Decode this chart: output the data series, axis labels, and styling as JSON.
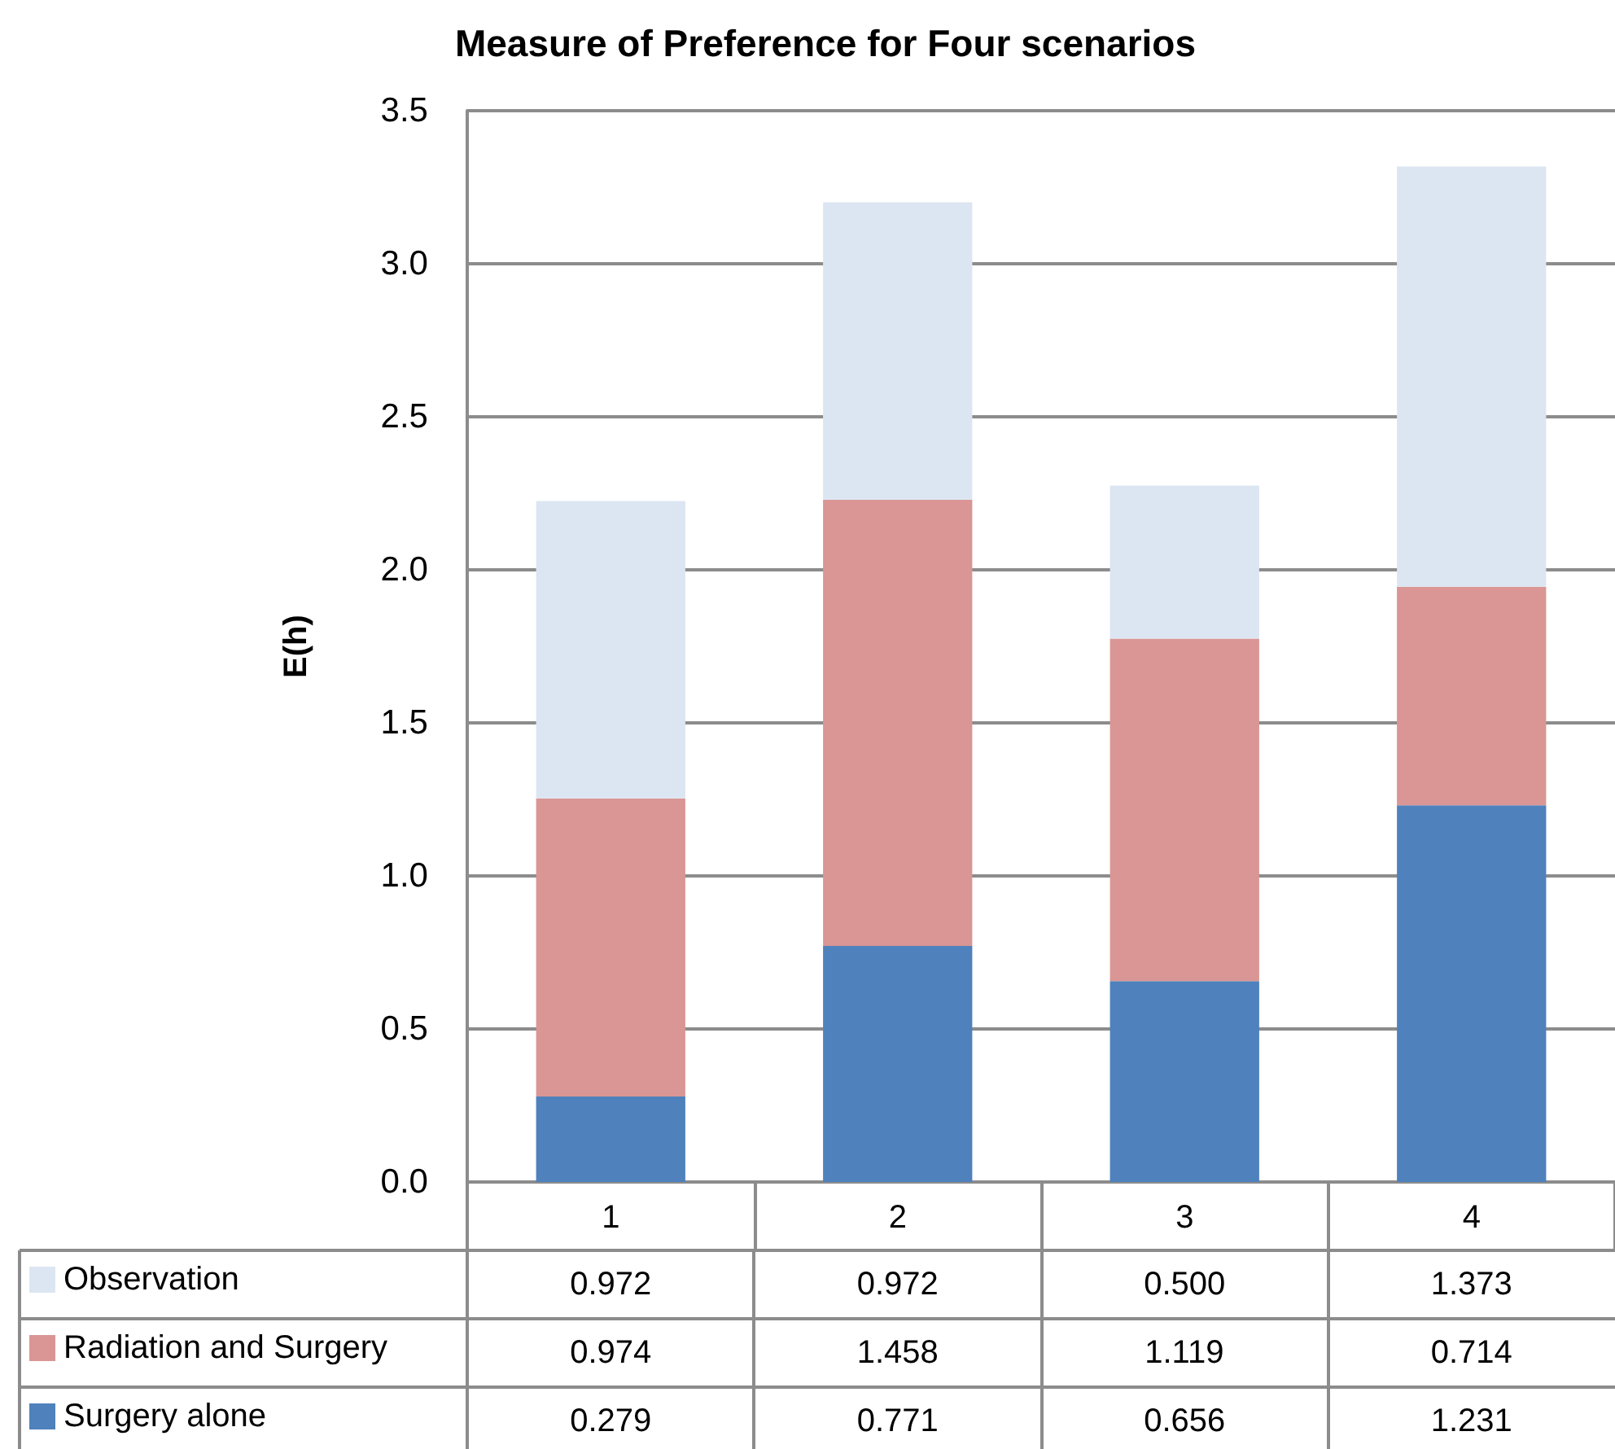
{
  "chart_data": {
    "type": "bar",
    "title": "Measure of Preference for Four scenarios",
    "ylabel": "E(h)",
    "categories": [
      "1",
      "2",
      "3",
      "4"
    ],
    "series": [
      {
        "name": "Surgery alone",
        "color": "#4f81bd",
        "values": [
          0.279,
          0.771,
          0.656,
          1.231
        ],
        "value_labels": [
          "0.279",
          "0.771",
          "0.656",
          "1.231"
        ]
      },
      {
        "name": "Radiation and Surgery",
        "color": "#d99694",
        "values": [
          0.974,
          1.458,
          1.119,
          0.714
        ],
        "value_labels": [
          "0.974",
          "1.458",
          "1.119",
          "0.714"
        ]
      },
      {
        "name": "Observation",
        "color": "#dce6f2",
        "values": [
          0.972,
          0.972,
          0.5,
          1.373
        ],
        "value_labels": [
          "0.972",
          "0.972",
          "0.500",
          "1.373"
        ]
      }
    ],
    "stacked": true,
    "ylim": [
      0,
      3.5
    ],
    "yticks": [
      {
        "value": 0,
        "label": "0.0"
      },
      0.5,
      {
        "value": 1,
        "label": "1.0"
      },
      1.5,
      {
        "value": 2,
        "label": "2.0"
      },
      2.5,
      {
        "value": 3,
        "label": "3.0"
      },
      3.5
    ],
    "grid": "y",
    "legend": "bottom left"
  }
}
